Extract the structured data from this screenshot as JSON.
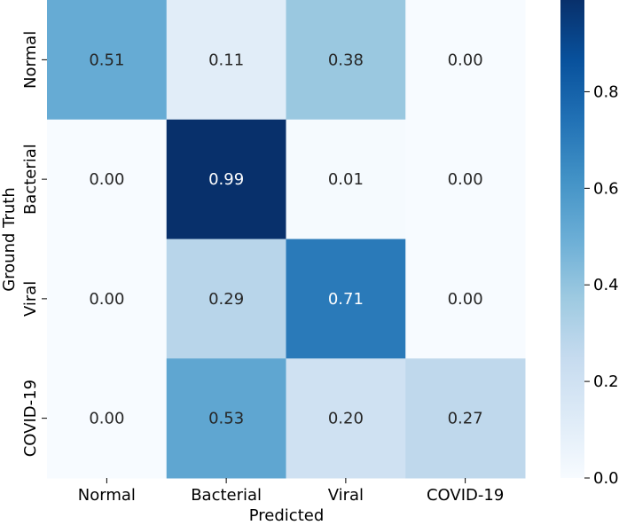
{
  "chart_data": {
    "type": "heatmap",
    "title": "",
    "xlabel": "Predicted",
    "ylabel": "Ground Truth",
    "x_categories": [
      "Normal",
      "Bacterial",
      "Viral",
      "COVID-19"
    ],
    "y_categories": [
      "Normal",
      "Bacterial",
      "Viral",
      "COVID-19"
    ],
    "values": [
      [
        0.51,
        0.11,
        0.38,
        0.0
      ],
      [
        0.0,
        0.99,
        0.01,
        0.0
      ],
      [
        0.0,
        0.29,
        0.71,
        0.0
      ],
      [
        0.0,
        0.53,
        0.2,
        0.27
      ]
    ],
    "value_labels": [
      [
        "0.51",
        "0.11",
        "0.38",
        "0.00"
      ],
      [
        "0.00",
        "0.99",
        "0.01",
        "0.00"
      ],
      [
        "0.00",
        "0.29",
        "0.71",
        "0.00"
      ],
      [
        "0.00",
        "0.53",
        "0.20",
        "0.27"
      ]
    ],
    "colormap": "Blues",
    "color_range": [
      0,
      0.99
    ],
    "colorbar_ticks": [
      {
        "value": 0.0,
        "label": "0.0"
      },
      {
        "value": 0.2,
        "label": "0.2"
      },
      {
        "value": 0.4,
        "label": "0.4"
      },
      {
        "value": 0.6,
        "label": "0.6"
      },
      {
        "value": 0.8,
        "label": "0.8"
      }
    ],
    "grid": false,
    "legend": "colorbar-right"
  }
}
